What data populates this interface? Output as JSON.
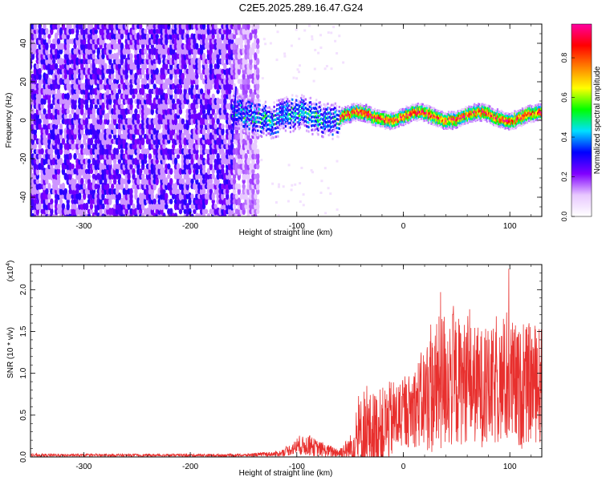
{
  "title": "C2E5.2025.289.16.47.G24",
  "chart_data": [
    {
      "type": "heatmap",
      "title": "C2E5.2025.289.16.47.G24",
      "xlabel": "Height of straight line (km)",
      "ylabel": "Frequency (Hz)",
      "xlim": [
        -350,
        130
      ],
      "ylim": [
        -50,
        50
      ],
      "x_ticks": [
        -300,
        -200,
        -100,
        0,
        100
      ],
      "x_tick_labels": [
        "-300",
        "-200",
        "-100",
        "0",
        "100"
      ],
      "y_ticks": [
        -40,
        -20,
        0,
        20,
        40
      ],
      "y_tick_labels": [
        "-40",
        "-20",
        "0",
        "20",
        "40"
      ],
      "colorbar": {
        "label": "Normalized spectral amplitude",
        "range": [
          0,
          0.97
        ],
        "ticks": [
          0.0,
          0.2,
          0.4,
          0.6,
          0.8
        ],
        "tick_labels": [
          "0.0",
          "0.2",
          "0.4",
          "0.6",
          "0.8"
        ],
        "colormap": [
          "#ffffff",
          "#e8c8ff",
          "#8000ff",
          "#0000ff",
          "#00e0ff",
          "#00ff00",
          "#ffff00",
          "#ff8000",
          "#ff0000",
          "#ff00a0"
        ]
      },
      "regions": [
        {
          "name": "broadband noise",
          "x_range": [
            -350,
            -135
          ],
          "freq_range": [
            -50,
            50
          ],
          "amplitude": 0.15
        },
        {
          "name": "tone track",
          "x_range": [
            -160,
            130
          ],
          "freq_center": 2,
          "amplitude": 0.75
        }
      ]
    },
    {
      "type": "line",
      "xlabel": "Height of straight line (km)",
      "ylabel": "SNR (10 * v/v)",
      "scale_label": "(x10",
      "scale_exponent": "4",
      "scale_close": ")",
      "xlim": [
        -350,
        130
      ],
      "ylim": [
        0,
        2.3
      ],
      "x_ticks": [
        -300,
        -200,
        -100,
        0,
        100
      ],
      "x_tick_labels": [
        "-300",
        "-200",
        "-100",
        "0",
        "100"
      ],
      "y_ticks": [
        0.0,
        0.5,
        1.0,
        1.5,
        2.0
      ],
      "y_tick_labels": [
        "0.0",
        "0.5",
        "1.0",
        "1.5",
        "2.0"
      ],
      "color": "#e8302e",
      "envelope": {
        "x": [
          -350,
          -150,
          -115,
          -100,
          -90,
          -75,
          -60,
          -50,
          -40,
          -30,
          -20,
          -10,
          0,
          10,
          20,
          30,
          40,
          50,
          60,
          70,
          80,
          90,
          100,
          110,
          120,
          130
        ],
        "mean": [
          0.02,
          0.02,
          0.04,
          0.12,
          0.14,
          0.08,
          0.05,
          0.1,
          0.25,
          0.3,
          0.35,
          0.45,
          0.5,
          0.6,
          0.7,
          0.8,
          0.95,
          0.9,
          0.9,
          0.85,
          0.8,
          0.85,
          0.9,
          0.8,
          0.9,
          0.85
        ],
        "spread": [
          0.01,
          0.01,
          0.02,
          0.06,
          0.08,
          0.05,
          0.04,
          0.1,
          0.3,
          0.3,
          0.3,
          0.3,
          0.25,
          0.3,
          0.4,
          0.5,
          0.55,
          0.5,
          0.45,
          0.45,
          0.45,
          0.45,
          0.5,
          0.45,
          0.45,
          0.45
        ]
      },
      "peaks": [
        {
          "x": 35,
          "y": 1.97
        },
        {
          "x": 99,
          "y": 2.25
        },
        {
          "x": -37,
          "y": 0.78
        }
      ]
    }
  ]
}
